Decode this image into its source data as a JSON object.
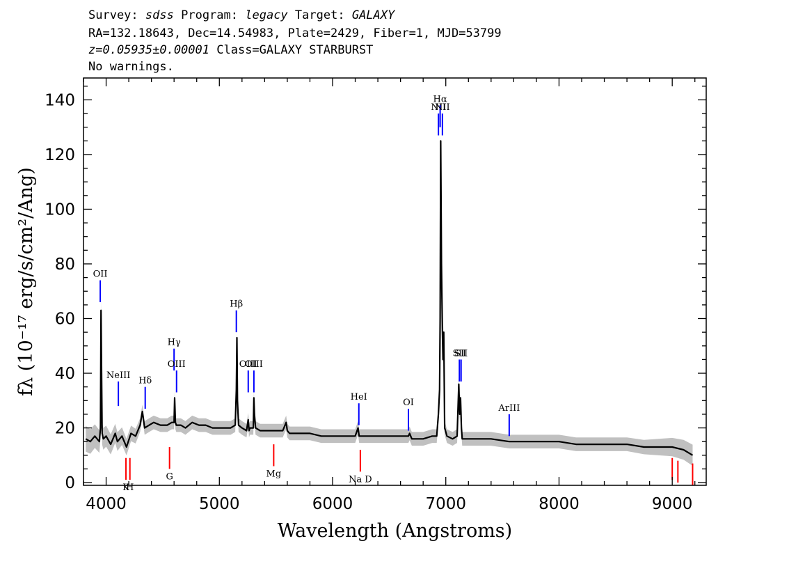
{
  "header": {
    "survey_label": "Survey:",
    "survey": "sdss",
    "program_label": "Program:",
    "program": "legacy",
    "target_label": "Target:",
    "target": "GALAXY",
    "line2": "RA=132.18643, Dec=14.54983, Plate=2429, Fiber=1, MJD=53799",
    "redshift": "z=0.05935±0.00001",
    "class_text": "Class=GALAXY STARBURST",
    "warnings": "No warnings."
  },
  "chart_data": {
    "type": "line",
    "xlabel": "Wavelength (Angstroms)",
    "ylabel": "fλ (10⁻¹⁷ erg/s/cm²/Ang)",
    "xlim": [
      3800,
      9300
    ],
    "ylim": [
      -1,
      148
    ],
    "xticks": [
      4000,
      5000,
      6000,
      7000,
      8000,
      9000
    ],
    "yticks": [
      0,
      20,
      40,
      60,
      80,
      100,
      120,
      140
    ],
    "grid": false,
    "series": [
      {
        "color": "#000000",
        "error_band_color": "#c0c0c0",
        "x": [
          3820,
          3860,
          3900,
          3940,
          3950,
          3955,
          3960,
          3965,
          3975,
          4000,
          4040,
          4080,
          4100,
          4140,
          4180,
          4220,
          4260,
          4300,
          4320,
          4340,
          4380,
          4420,
          4480,
          4540,
          4580,
          4600,
          4605,
          4612,
          4620,
          4660,
          4700,
          4760,
          4820,
          4880,
          4940,
          5000,
          5060,
          5100,
          5140,
          5150,
          5155,
          5160,
          5170,
          5200,
          5240,
          5255,
          5262,
          5270,
          5300,
          5305,
          5310,
          5320,
          5360,
          5420,
          5480,
          5560,
          5590,
          5600,
          5620,
          5700,
          5800,
          5900,
          6000,
          6100,
          6200,
          6225,
          6235,
          6260,
          6350,
          6450,
          6550,
          6650,
          6670,
          6680,
          6700,
          6800,
          6880,
          6920,
          6935,
          6945,
          6950,
          6955,
          6962,
          6970,
          6975,
          6982,
          6990,
          7010,
          7060,
          7100,
          7115,
          7122,
          7130,
          7138,
          7145,
          7160,
          7250,
          7400,
          7560,
          7700,
          7850,
          8000,
          8150,
          8300,
          8450,
          8600,
          8750,
          8900,
          9000,
          9100,
          9180
        ],
        "y": [
          16,
          15,
          17,
          15,
          20,
          63,
          40,
          18,
          16,
          17,
          14,
          18,
          15,
          17,
          13,
          18,
          17,
          21,
          26,
          20,
          21,
          22,
          21,
          21,
          22,
          22,
          31,
          22,
          21,
          21,
          20,
          22,
          21,
          21,
          20,
          20,
          20,
          20,
          21,
          34,
          53,
          30,
          21,
          20,
          19,
          23,
          19,
          20,
          20,
          31,
          25,
          20,
          19,
          19,
          19,
          19,
          22,
          19,
          18,
          18,
          18,
          17,
          17,
          17,
          17,
          20,
          17,
          17,
          17,
          17,
          17,
          17,
          17,
          18,
          16,
          16,
          17,
          17,
          25,
          34,
          60,
          125,
          80,
          56,
          45,
          55,
          20,
          17,
          16,
          17,
          36,
          25,
          31,
          20,
          16,
          16,
          16,
          16,
          15,
          15,
          15,
          15,
          14,
          14,
          14,
          14,
          13,
          13,
          13,
          12,
          10
        ]
      }
    ],
    "emission_lines": [
      {
        "label": "OII",
        "x": 3948,
        "y_top": 74,
        "y_bottom": 66
      },
      {
        "label": "NeIII",
        "x": 4108,
        "y_top": 37,
        "y_bottom": 28
      },
      {
        "label": "Hδ",
        "x": 4345,
        "y_top": 35,
        "y_bottom": 27
      },
      {
        "label": "Hγ",
        "x": 4600,
        "y_top": 49,
        "y_bottom": 41
      },
      {
        "label": "OIII",
        "x": 4622,
        "y_top": 41,
        "y_bottom": 33
      },
      {
        "label": "Hβ",
        "x": 5150,
        "y_top": 63,
        "y_bottom": 55
      },
      {
        "label": "OIII",
        "x": 5255,
        "y_top": 41,
        "y_bottom": 33
      },
      {
        "label": "OIII",
        "x": 5305,
        "y_top": 41,
        "y_bottom": 33
      },
      {
        "label": "HeI",
        "x": 6232,
        "y_top": 29,
        "y_bottom": 21
      },
      {
        "label": "OI",
        "x": 6670,
        "y_top": 27,
        "y_bottom": 19
      },
      {
        "label": "NII",
        "x": 6935,
        "y_top": 135,
        "y_bottom": 127
      },
      {
        "label": "Hα",
        "x": 6950,
        "y_top": 138,
        "y_bottom": 130
      },
      {
        "label": "NII",
        "x": 6970,
        "y_top": 135,
        "y_bottom": 127
      },
      {
        "label": "SII",
        "x": 7120,
        "y_top": 45,
        "y_bottom": 37
      },
      {
        "label": "SII",
        "x": 7135,
        "y_top": 45,
        "y_bottom": 37
      },
      {
        "label": "ArIII",
        "x": 7560,
        "y_top": 25,
        "y_bottom": 17
      }
    ],
    "absorption_lines": [
      {
        "label": "K",
        "x": 4175,
        "y_top": 9,
        "y_bottom": 1
      },
      {
        "label": "H",
        "x": 4210,
        "y_top": 9,
        "y_bottom": 1
      },
      {
        "label": "G",
        "x": 4560,
        "y_top": 13,
        "y_bottom": 5
      },
      {
        "label": "Mg",
        "x": 5480,
        "y_top": 14,
        "y_bottom": 6
      },
      {
        "label": "Na D",
        "x": 6245,
        "y_top": 12,
        "y_bottom": 4
      },
      {
        "label": "",
        "x": 9000,
        "y_top": 9,
        "y_bottom": 1
      },
      {
        "label": "",
        "x": 9050,
        "y_top": 8,
        "y_bottom": 0
      },
      {
        "label": "",
        "x": 9180,
        "y_top": 7,
        "y_bottom": -1
      }
    ],
    "colors": {
      "emission_marker": "#0000ff",
      "absorption_marker": "#ff0000"
    }
  }
}
